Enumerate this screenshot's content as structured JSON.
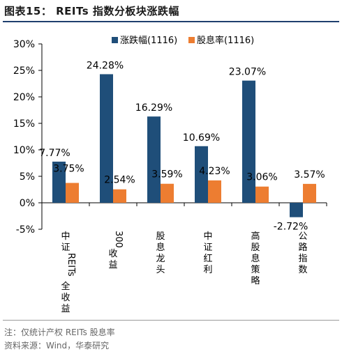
{
  "header": {
    "title": "图表15： REITs 指数分板块涨跌幅"
  },
  "footer": {
    "note": "注：仅统计产权 REITs 股息率",
    "source": "资料来源：Wind，华泰研究"
  },
  "colors": {
    "series1": "#1f4e79",
    "series2": "#ed7d31",
    "title_rule": "#1f3f6e"
  },
  "chart_data": {
    "type": "bar",
    "categories": [
      "中证REITs全收益",
      "300收益",
      "股息龙头",
      "中证红利",
      "高股息策略",
      "公路指数"
    ],
    "series": [
      {
        "name": "涨跌幅(1116)",
        "values": [
          7.77,
          24.28,
          16.29,
          10.69,
          23.07,
          -2.72
        ],
        "labels": [
          "7.77%",
          "24.28%",
          "16.29%",
          "10.69%",
          "23.07%",
          "-2.72%"
        ]
      },
      {
        "name": "股息率(1116)",
        "values": [
          3.75,
          2.54,
          3.59,
          4.23,
          3.06,
          3.57
        ],
        "labels": [
          "3.75%",
          "2.54%",
          "3.59%",
          "4.23%",
          "3.06%",
          "3.57%"
        ]
      }
    ],
    "ylim": [
      -5,
      30
    ],
    "yticks": [
      -5,
      0,
      5,
      10,
      15,
      20,
      25,
      30
    ],
    "ytick_labels": [
      "-5%",
      "0%",
      "5%",
      "10%",
      "15%",
      "20%",
      "25%",
      "30%"
    ],
    "legend": "top-center",
    "grid": false
  }
}
